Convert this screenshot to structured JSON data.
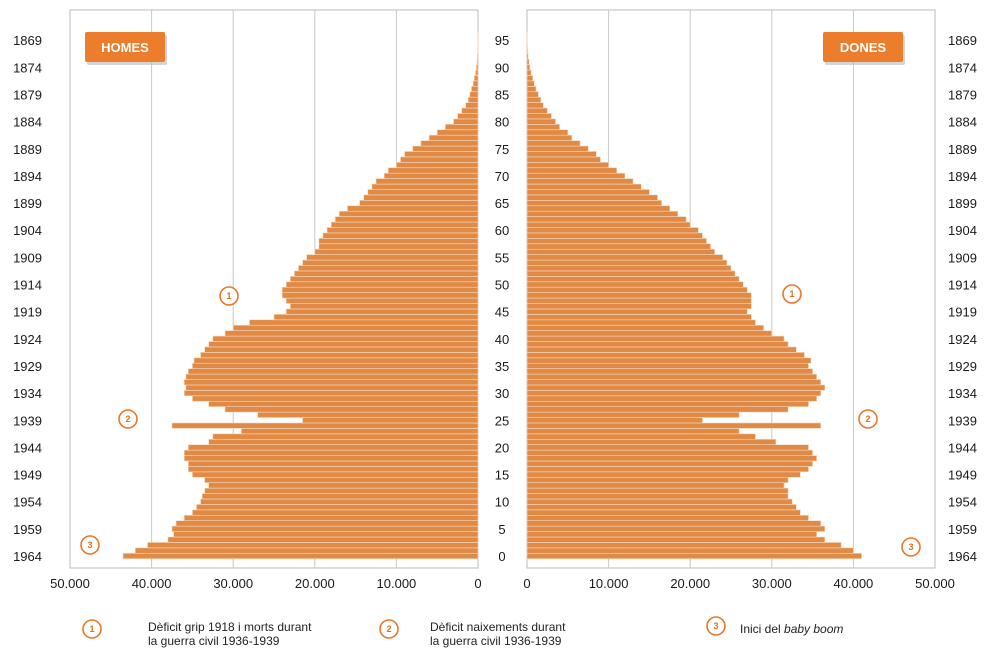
{
  "chart_data": {
    "type": "bar",
    "orientation": "horizontal",
    "subtype": "population-pyramid",
    "left_panel_label": "HOMES",
    "right_panel_label": "DONES",
    "age_ticks": [
      "95",
      "90",
      "85",
      "80",
      "75",
      "70",
      "65",
      "60",
      "55",
      "50",
      "45",
      "40",
      "35",
      "30",
      "25",
      "20",
      "15",
      "10",
      "5",
      "0"
    ],
    "birth_year_ticks": [
      "1869",
      "1874",
      "1879",
      "1884",
      "1889",
      "1894",
      "1899",
      "1904",
      "1909",
      "1914",
      "1919",
      "1924",
      "1929",
      "1934",
      "1939",
      "1944",
      "1949",
      "1954",
      "1959",
      "1964"
    ],
    "x_ticks_left": [
      "50.000",
      "40.000",
      "30.000",
      "20.000",
      "10.000",
      "0"
    ],
    "x_ticks_right": [
      "0",
      "10.000",
      "20.000",
      "30.000",
      "40.000",
      "50.000"
    ],
    "xlim": [
      0,
      50000
    ],
    "grid": true,
    "ages": [
      0,
      1,
      2,
      3,
      4,
      5,
      6,
      7,
      8,
      9,
      10,
      11,
      12,
      13,
      14,
      15,
      16,
      17,
      18,
      19,
      20,
      21,
      22,
      23,
      24,
      25,
      26,
      27,
      28,
      29,
      30,
      31,
      32,
      33,
      34,
      35,
      36,
      37,
      38,
      39,
      40,
      41,
      42,
      43,
      44,
      45,
      46,
      47,
      48,
      49,
      50,
      51,
      52,
      53,
      54,
      55,
      56,
      57,
      58,
      59,
      60,
      61,
      62,
      63,
      64,
      65,
      66,
      67,
      68,
      69,
      70,
      71,
      72,
      73,
      74,
      75,
      76,
      77,
      78,
      79,
      80,
      81,
      82,
      83,
      84,
      85,
      86,
      87,
      88,
      89,
      90,
      91,
      92,
      93,
      94,
      95,
      96
    ],
    "series": [
      {
        "name": "HOMES",
        "values": [
          43500,
          42000,
          40500,
          38000,
          37300,
          37500,
          37000,
          36000,
          35000,
          34500,
          34000,
          33800,
          33500,
          33000,
          33500,
          35000,
          35500,
          35500,
          36000,
          36000,
          35500,
          33000,
          32500,
          29000,
          37500,
          21500,
          27000,
          31000,
          33000,
          35000,
          36000,
          35800,
          36000,
          35800,
          35500,
          35000,
          34800,
          34000,
          33500,
          33000,
          32500,
          31000,
          30000,
          28000,
          25000,
          23500,
          23000,
          23500,
          24000,
          24000,
          23500,
          23000,
          22500,
          22000,
          21500,
          21000,
          20000,
          19500,
          19500,
          19000,
          18500,
          18000,
          17500,
          17000,
          16000,
          14500,
          14000,
          13500,
          13000,
          12500,
          11500,
          11000,
          10000,
          9500,
          9000,
          8000,
          7000,
          6000,
          5000,
          4000,
          3000,
          2500,
          2000,
          1500,
          1200,
          1000,
          800,
          600,
          450,
          300,
          200,
          120,
          80,
          50,
          30,
          15,
          5
        ]
      },
      {
        "name": "DONES",
        "values": [
          41000,
          40000,
          38500,
          36500,
          35500,
          36500,
          36000,
          34500,
          33500,
          33000,
          32500,
          32000,
          32000,
          31500,
          32000,
          33500,
          34500,
          35000,
          35500,
          35000,
          34500,
          30500,
          28000,
          26000,
          36000,
          21500,
          26000,
          32000,
          34500,
          35500,
          36000,
          36500,
          36000,
          35500,
          35000,
          34500,
          34800,
          34000,
          33000,
          32000,
          31500,
          30000,
          29000,
          28000,
          27500,
          27000,
          27500,
          27500,
          27500,
          27000,
          26500,
          26000,
          25500,
          25000,
          24500,
          24000,
          23000,
          22500,
          22000,
          21500,
          21000,
          20000,
          19500,
          18500,
          17500,
          16500,
          16000,
          15000,
          14000,
          13000,
          12000,
          11000,
          10000,
          9000,
          8500,
          7500,
          6500,
          5500,
          5000,
          4000,
          3500,
          3000,
          2500,
          2000,
          1700,
          1400,
          1100,
          900,
          700,
          500,
          350,
          250,
          150,
          100,
          60,
          30,
          10
        ]
      }
    ]
  },
  "markers": [
    {
      "id": "1",
      "label": "1"
    },
    {
      "id": "2",
      "label": "2"
    },
    {
      "id": "3",
      "label": "3"
    }
  ],
  "legend": [
    {
      "marker": "1",
      "line1": "Dèficit grip 1918 i morts durant",
      "line2": "la guerra civil 1936-1939"
    },
    {
      "marker": "2",
      "line1": "Dèficit naixements durant",
      "line2": "la guerra civil 1936-1939"
    },
    {
      "marker": "3",
      "prefix": "Inici del ",
      "emph": "baby boom"
    }
  ],
  "colors": {
    "bar": "#e08a45",
    "bar_stripe": "#f7d9bd",
    "badge": "#ec7d2c",
    "marker": "#e8782a",
    "grid": "#c8c8c8",
    "axis": "#999999"
  }
}
